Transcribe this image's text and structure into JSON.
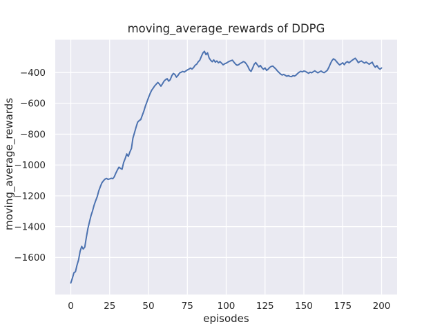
{
  "figure": {
    "background": "#ffffff",
    "title": "moving_average_rewards of DDPG"
  },
  "chart_data": {
    "type": "line",
    "title": "moving_average_rewards of DDPG",
    "xlabel": "episodes",
    "ylabel": "moving_average_rewards",
    "style": "seaborn-darkgrid",
    "plot_bg": "#EAEAF2",
    "grid_color": "#FFFFFF",
    "text_color": "#262626",
    "grid": true,
    "legend": null,
    "xlim": [
      -10,
      210
    ],
    "ylim": [
      -1841,
      -187
    ],
    "xticks": [
      0,
      25,
      50,
      75,
      100,
      125,
      150,
      175,
      200
    ],
    "xtick_labels": [
      "0",
      "25",
      "50",
      "75",
      "100",
      "125",
      "150",
      "175",
      "200"
    ],
    "yticks": [
      -400,
      -600,
      -800,
      -1000,
      -1200,
      -1400,
      -1600
    ],
    "ytick_labels": [
      "−400",
      "−600",
      "−800",
      "−1000",
      "−1200",
      "−1400",
      "−1600"
    ],
    "x": [
      0,
      1,
      2,
      3,
      4,
      5,
      6,
      7,
      8,
      9,
      10,
      11,
      12,
      13,
      14,
      15,
      16,
      17,
      18,
      19,
      20,
      21,
      22,
      23,
      24,
      25,
      26,
      27,
      28,
      29,
      30,
      31,
      32,
      33,
      34,
      35,
      36,
      37,
      38,
      39,
      40,
      41,
      42,
      43,
      44,
      45,
      46,
      47,
      48,
      49,
      50,
      51,
      52,
      53,
      54,
      55,
      56,
      57,
      58,
      59,
      60,
      61,
      62,
      63,
      64,
      65,
      66,
      67,
      68,
      69,
      70,
      71,
      72,
      73,
      74,
      75,
      76,
      77,
      78,
      79,
      80,
      81,
      82,
      83,
      84,
      85,
      86,
      87,
      88,
      89,
      90,
      91,
      92,
      93,
      94,
      95,
      96,
      97,
      98,
      99,
      100,
      101,
      102,
      103,
      104,
      105,
      106,
      107,
      108,
      109,
      110,
      111,
      112,
      113,
      114,
      115,
      116,
      117,
      118,
      119,
      120,
      121,
      122,
      123,
      124,
      125,
      126,
      127,
      128,
      129,
      130,
      131,
      132,
      133,
      134,
      135,
      136,
      137,
      138,
      139,
      140,
      141,
      142,
      143,
      144,
      145,
      146,
      147,
      148,
      149,
      150,
      151,
      152,
      153,
      154,
      155,
      156,
      157,
      158,
      159,
      160,
      161,
      162,
      163,
      164,
      165,
      166,
      167,
      168,
      169,
      170,
      171,
      172,
      173,
      174,
      175,
      176,
      177,
      178,
      179,
      180,
      181,
      182,
      183,
      184,
      185,
      186,
      187,
      188,
      189,
      190,
      191,
      192,
      193,
      194,
      195,
      196,
      197,
      198,
      199,
      200
    ],
    "series": [
      {
        "name": "moving_average_rewards",
        "color": "#4C72B0",
        "values": [
          -1766,
          -1735,
          -1700,
          -1692,
          -1650,
          -1615,
          -1560,
          -1528,
          -1545,
          -1532,
          -1470,
          -1412,
          -1370,
          -1328,
          -1298,
          -1260,
          -1232,
          -1205,
          -1168,
          -1140,
          -1116,
          -1102,
          -1092,
          -1087,
          -1093,
          -1090,
          -1086,
          -1089,
          -1076,
          -1052,
          -1032,
          -1014,
          -1022,
          -1027,
          -984,
          -958,
          -928,
          -944,
          -916,
          -893,
          -825,
          -790,
          -755,
          -722,
          -712,
          -705,
          -678,
          -650,
          -618,
          -590,
          -563,
          -537,
          -516,
          -501,
          -487,
          -475,
          -464,
          -475,
          -488,
          -473,
          -456,
          -446,
          -440,
          -456,
          -446,
          -420,
          -406,
          -413,
          -430,
          -418,
          -403,
          -398,
          -393,
          -397,
          -390,
          -383,
          -378,
          -371,
          -377,
          -368,
          -353,
          -346,
          -330,
          -320,
          -296,
          -273,
          -262,
          -284,
          -272,
          -305,
          -320,
          -330,
          -318,
          -333,
          -325,
          -337,
          -329,
          -339,
          -350,
          -343,
          -339,
          -333,
          -327,
          -323,
          -320,
          -333,
          -345,
          -353,
          -349,
          -341,
          -336,
          -329,
          -333,
          -345,
          -361,
          -383,
          -393,
          -371,
          -347,
          -335,
          -349,
          -363,
          -354,
          -369,
          -379,
          -370,
          -386,
          -378,
          -367,
          -360,
          -358,
          -368,
          -377,
          -390,
          -400,
          -410,
          -416,
          -412,
          -418,
          -424,
          -420,
          -425,
          -427,
          -420,
          -423,
          -416,
          -406,
          -398,
          -392,
          -396,
          -390,
          -393,
          -399,
          -405,
          -398,
          -402,
          -395,
          -389,
          -396,
          -402,
          -396,
          -390,
          -397,
          -401,
          -394,
          -386,
          -368,
          -344,
          -324,
          -311,
          -317,
          -329,
          -341,
          -351,
          -344,
          -337,
          -349,
          -335,
          -329,
          -337,
          -329,
          -321,
          -314,
          -307,
          -319,
          -336,
          -329,
          -325,
          -332,
          -339,
          -332,
          -339,
          -346,
          -339,
          -333,
          -354,
          -366,
          -355,
          -371,
          -378,
          -370
        ]
      }
    ]
  }
}
